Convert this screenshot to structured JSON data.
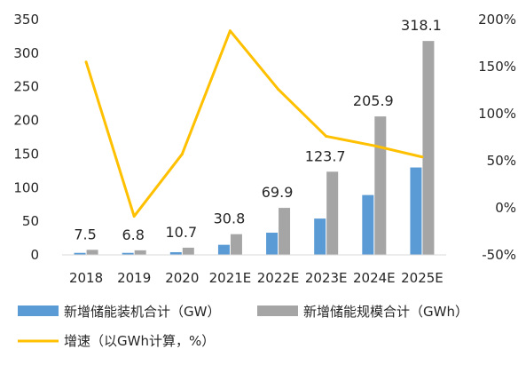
{
  "chart_data": {
    "type": "bar",
    "categories": [
      "2018",
      "2019",
      "2020",
      "2021E",
      "2022E",
      "2023E",
      "2024E",
      "2025E"
    ],
    "series": [
      {
        "name": "新增储能装机合计（GW）",
        "type": "bar",
        "axis": "left",
        "color": "#5B9BD5",
        "values": [
          3,
          3,
          4,
          15,
          33,
          54,
          89,
          130
        ]
      },
      {
        "name": "新增储能规模合计（GWh）",
        "type": "bar",
        "axis": "left",
        "color": "#A5A5A5",
        "values": [
          7.5,
          6.8,
          10.7,
          30.8,
          69.9,
          123.7,
          205.9,
          318.1
        ],
        "data_labels": [
          "7.5",
          "6.8",
          "10.7",
          "30.8",
          "69.9",
          "123.7",
          "205.9",
          "318.1"
        ]
      },
      {
        "name": "增速（以GWh计算，%）",
        "type": "line",
        "axis": "right",
        "color": "#FFC000",
        "values": [
          155,
          -9,
          57,
          188,
          126,
          76,
          66,
          54
        ]
      }
    ],
    "y_left": {
      "range": [
        0,
        350
      ],
      "ticks": [
        "0",
        "50",
        "100",
        "150",
        "200",
        "250",
        "300",
        "350"
      ]
    },
    "y_right": {
      "range": [
        -50,
        200
      ],
      "ticks": [
        "-50%",
        "0%",
        "50%",
        "100%",
        "150%",
        "200%"
      ]
    },
    "grid": false,
    "legend_position": "bottom"
  }
}
